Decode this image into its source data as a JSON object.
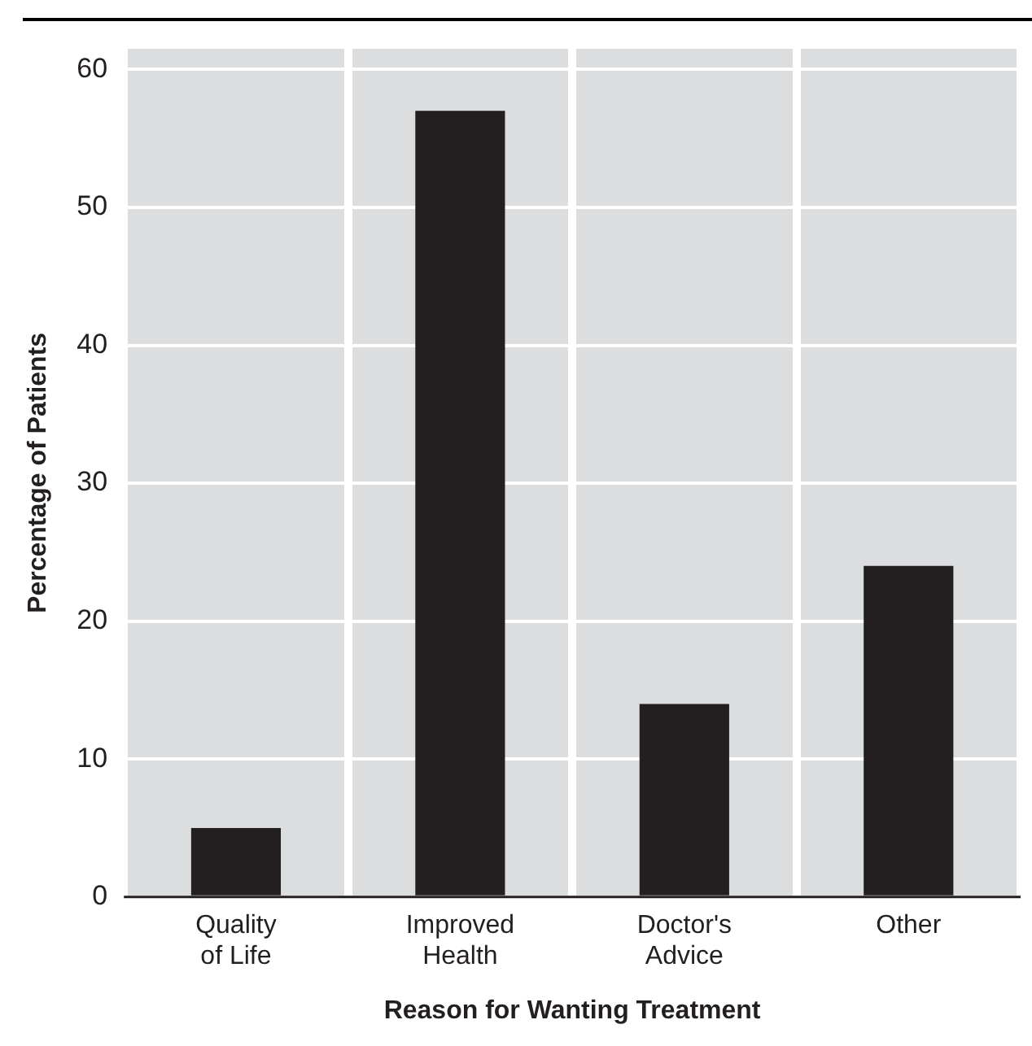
{
  "chart_data": {
    "type": "bar",
    "xlabel": "Reason for Wanting Treatment",
    "ylabel": "Percentage of Patients",
    "categories": [
      "Quality\nof Life",
      "Improved\nHealth",
      "Doctor's\nAdvice",
      "Other"
    ],
    "values": [
      5,
      57,
      14,
      24
    ],
    "color": "#231f20",
    "ylim": [
      0,
      61.5
    ],
    "yticks": [
      0,
      10,
      20,
      30,
      40,
      50,
      60
    ],
    "grid": true,
    "legend": false
  }
}
